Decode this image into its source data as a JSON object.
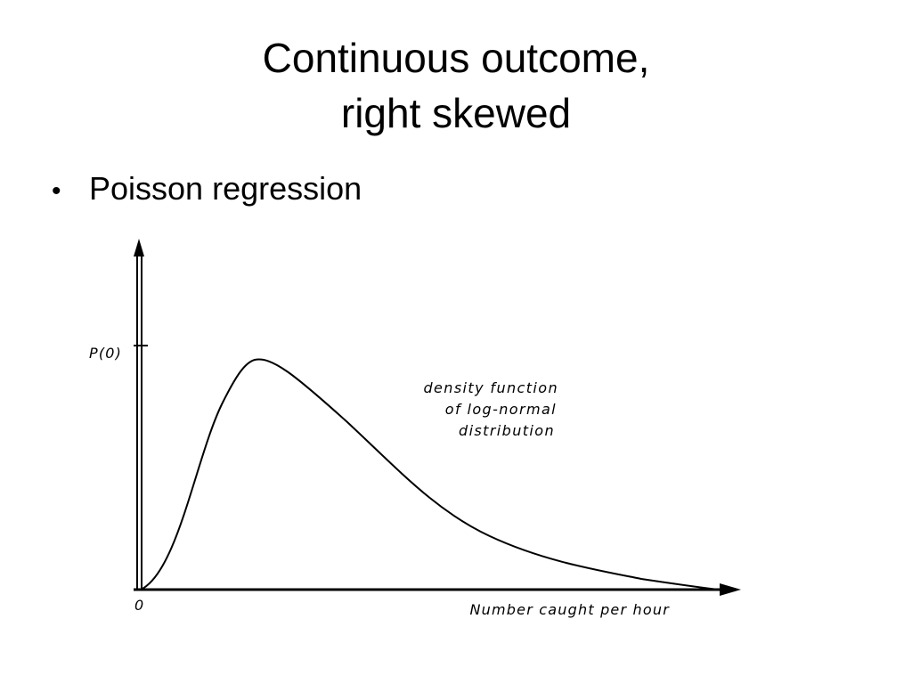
{
  "slide": {
    "title_line1": "Continuous outcome,",
    "title_line2": "right skewed",
    "bullets": [
      "Poisson regression"
    ]
  },
  "figure": {
    "y_label": "P(0)",
    "x_origin_label": "0",
    "x_label": "Number caught per hour",
    "annotation": [
      "density function",
      "of log-normal",
      "distribution"
    ]
  },
  "colors": {
    "ink": "#000000",
    "background": "#ffffff"
  }
}
